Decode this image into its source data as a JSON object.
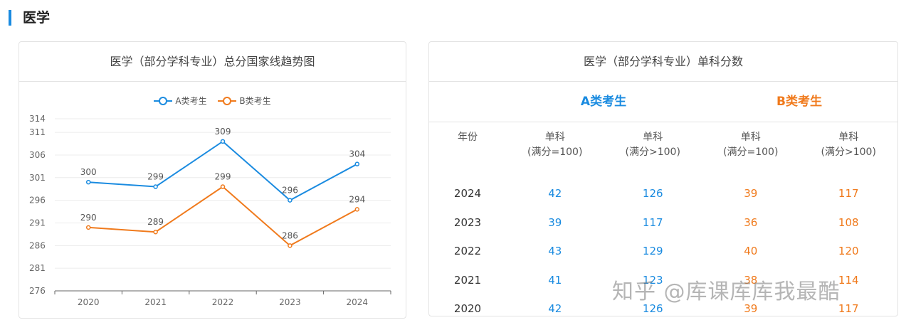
{
  "section": {
    "title": "医学"
  },
  "chart_card": {
    "header": "医学（部分学科专业）总分国家线趋势图"
  },
  "table_card": {
    "header": "医学（部分学科专业）单科分数"
  },
  "colors": {
    "series_a": "#1a8be0",
    "series_b": "#f07a1c",
    "accent": "#1a8be0"
  },
  "chart_data": {
    "type": "line",
    "x": [
      "2020",
      "2021",
      "2022",
      "2023",
      "2024"
    ],
    "series": [
      {
        "name": "A类考生",
        "values": [
          300,
          299,
          309,
          296,
          304
        ]
      },
      {
        "name": "B类考生",
        "values": [
          290,
          289,
          299,
          286,
          294
        ]
      }
    ],
    "y_ticks": [
      276,
      281,
      286,
      291,
      296,
      301,
      306,
      311,
      314
    ],
    "ylim": [
      276,
      314
    ],
    "legend": "top-center",
    "grid": true
  },
  "table": {
    "group_a": "A类考生",
    "group_b": "B类考生",
    "headers": {
      "year": "年份",
      "a1_line1": "单科",
      "a1_line2": "(满分=100)",
      "a2_line1": "单科",
      "a2_line2": "(满分>100)",
      "b1_line1": "单科",
      "b1_line2": "(满分=100)",
      "b2_line1": "单科",
      "b2_line2": "(满分>100)"
    },
    "rows": [
      {
        "year": "2024",
        "a1": "42",
        "a2": "126",
        "b1": "39",
        "b2": "117"
      },
      {
        "year": "2023",
        "a1": "39",
        "a2": "117",
        "b1": "36",
        "b2": "108"
      },
      {
        "year": "2022",
        "a1": "43",
        "a2": "129",
        "b1": "40",
        "b2": "120"
      },
      {
        "year": "2021",
        "a1": "41",
        "a2": "123",
        "b1": "38",
        "b2": "114"
      },
      {
        "year": "2020",
        "a1": "42",
        "a2": "126",
        "b1": "39",
        "b2": "117"
      }
    ]
  },
  "watermark": "知乎 @库课库库我最酷"
}
